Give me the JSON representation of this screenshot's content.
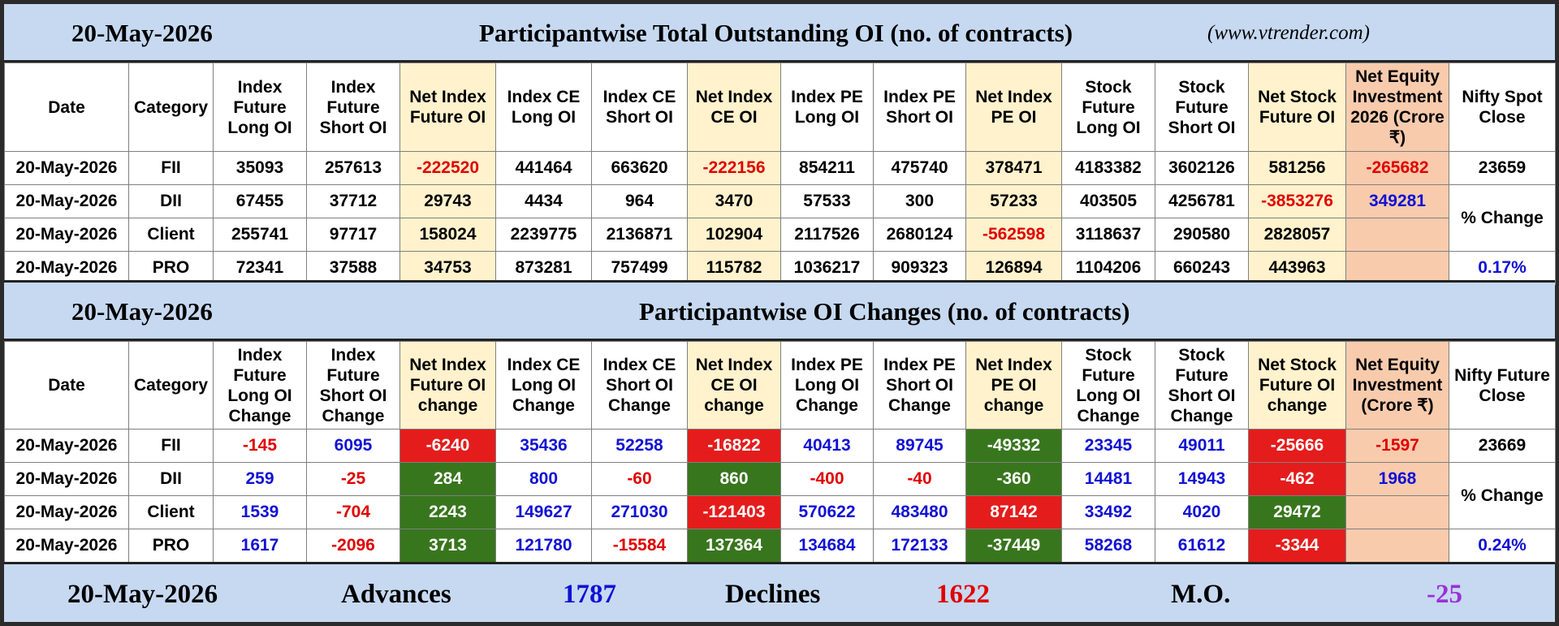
{
  "top": {
    "date": "20-May-2026",
    "title": "Participantwise Total Outstanding OI (no. of contracts)",
    "site": "(www.vtrender.com)",
    "headers": [
      "Date",
      "Category",
      "Index Future Long OI",
      "Index Future Short OI",
      "Net Index Future OI",
      "Index CE Long OI",
      "Index CE Short OI",
      "Net Index CE OI",
      "Index PE Long OI",
      "Index PE Short OI",
      "Net Index PE OI",
      "Stock Future Long OI",
      "Stock Future Short OI",
      "Net Stock Future OI",
      "Net Equity Investment 2026 (Crore ₹)",
      "Nifty Spot Close"
    ],
    "rows": [
      [
        "20-May-2026",
        "FII",
        "35093",
        "257613",
        "-222520",
        "441464",
        "663620",
        "-222156",
        "854211",
        "475740",
        "378471",
        "4183382",
        "3602126",
        "581256",
        "-265682"
      ],
      [
        "20-May-2026",
        "DII",
        "67455",
        "37712",
        "29743",
        "4434",
        "964",
        "3470",
        "57533",
        "300",
        "57233",
        "403505",
        "4256781",
        "-3853276",
        "349281"
      ],
      [
        "20-May-2026",
        "Client",
        "255741",
        "97717",
        "158024",
        "2239775",
        "2136871",
        "102904",
        "2117526",
        "2680124",
        "-562598",
        "3118637",
        "290580",
        "2828057",
        ""
      ],
      [
        "20-May-2026",
        "PRO",
        "72341",
        "37588",
        "34753",
        "873281",
        "757499",
        "115782",
        "1036217",
        "909323",
        "126894",
        "1104206",
        "660243",
        "443963",
        ""
      ]
    ],
    "nifty_close": "23659",
    "pct_label": "% Change",
    "pct_value": "0.17%"
  },
  "changes": {
    "date": "20-May-2026",
    "title": "Participantwise OI Changes (no. of contracts)",
    "headers": [
      "Date",
      "Category",
      "Index Future Long OI Change",
      "Index Future Short OI Change",
      "Net Index Future OI change",
      "Index CE Long OI Change",
      "Index CE Short OI Change",
      "Net Index CE OI change",
      "Index PE Long OI Change",
      "Index PE Short OI Change",
      "Net Index PE OI change",
      "Stock Future Long OI Change",
      "Stock Future Short OI Change",
      "Net Stock Future OI change",
      "Net Equity Investment (Crore ₹)",
      "Nifty Future Close"
    ],
    "rows": [
      [
        "20-May-2026",
        "FII",
        "-145",
        "6095",
        "-6240",
        "35436",
        "52258",
        "-16822",
        "40413",
        "89745",
        "-49332",
        "23345",
        "49011",
        "-25666",
        "-1597"
      ],
      [
        "20-May-2026",
        "DII",
        "259",
        "-25",
        "284",
        "800",
        "-60",
        "860",
        "-400",
        "-40",
        "-360",
        "14481",
        "14943",
        "-462",
        "1968"
      ],
      [
        "20-May-2026",
        "Client",
        "1539",
        "-704",
        "2243",
        "149627",
        "271030",
        "-121403",
        "570622",
        "483480",
        "87142",
        "33492",
        "4020",
        "29472",
        ""
      ],
      [
        "20-May-2026",
        "PRO",
        "1617",
        "-2096",
        "3713",
        "121780",
        "-15584",
        "137364",
        "134684",
        "172133",
        "-37449",
        "58268",
        "61612",
        "-3344",
        ""
      ]
    ],
    "nifty_close": "23669",
    "pct_label": "% Change",
    "pct_value": "0.24%"
  },
  "footer": {
    "date": "20-May-2026",
    "advances_label": "Advances",
    "advances_value": "1787",
    "declines_label": "Declines",
    "declines_value": "1622",
    "mo_label": "M.O.",
    "mo_value": "-25"
  },
  "colors": {
    "positive_text": "#1111d4",
    "negative_text": "#e00000",
    "positive_fill": "#38761d",
    "negative_fill": "#e51c1c",
    "mo_value": "#9b30d9"
  }
}
